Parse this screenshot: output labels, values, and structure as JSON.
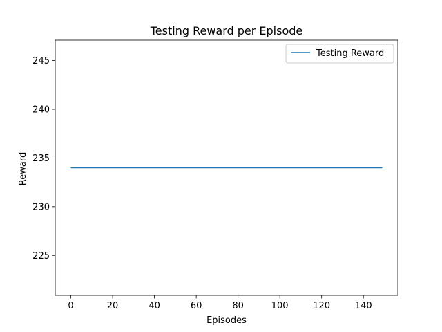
{
  "chart_data": {
    "type": "line",
    "title": "Testing Reward per Episode",
    "xlabel": "Episodes",
    "ylabel": "Reward",
    "xlim": [
      -7.45,
      156.45
    ],
    "ylim": [
      220.9,
      247.1
    ],
    "xticks": [
      0,
      20,
      40,
      60,
      80,
      100,
      120,
      140
    ],
    "yticks": [
      225,
      230,
      235,
      240,
      245
    ],
    "grid": false,
    "legend_position": "top-right",
    "series": [
      {
        "name": "Testing Reward",
        "color": "#1f77b4",
        "x": [
          0,
          149
        ],
        "y": [
          234,
          234
        ]
      }
    ]
  }
}
